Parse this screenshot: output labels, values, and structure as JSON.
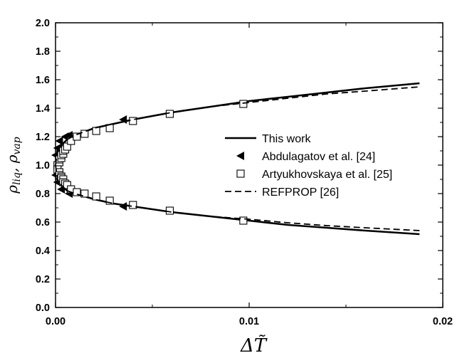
{
  "chart_data": {
    "type": "scatter",
    "xlabel": "ΔT̃",
    "ylabel_main": "ρ",
    "ylabel_sub1": "liq",
    "ylabel_sep": ", ",
    "ylabel_sub2": "vap",
    "xlim": [
      0.0,
      0.02
    ],
    "ylim": [
      0.0,
      2.0
    ],
    "xticks": [
      0.0,
      0.01,
      0.02
    ],
    "xtick_labels": [
      "0.00",
      "0.01",
      "0.02"
    ],
    "yticks": [
      0.0,
      0.2,
      0.4,
      0.6,
      0.8,
      1.0,
      1.2,
      1.4,
      1.6,
      1.8,
      2.0
    ],
    "ytick_labels": [
      "0.0",
      "0.2",
      "0.4",
      "0.6",
      "0.8",
      "1.0",
      "1.2",
      "1.4",
      "1.6",
      "1.8",
      "2.0"
    ],
    "grid": false,
    "legend_position": "center-right",
    "series": [
      {
        "name": "This work",
        "style": "solid-line",
        "color": "#000000",
        "liquid": {
          "x": [
            0,
            0.0001,
            0.0003,
            0.0006,
            0.001,
            0.002,
            0.003,
            0.004,
            0.006,
            0.008,
            0.01,
            0.012,
            0.014,
            0.016,
            0.0188
          ],
          "y": [
            1.0,
            1.1,
            1.14,
            1.18,
            1.21,
            1.26,
            1.29,
            1.32,
            1.37,
            1.41,
            1.45,
            1.48,
            1.51,
            1.54,
            1.575
          ]
        },
        "vapor": {
          "x": [
            0,
            0.0001,
            0.0003,
            0.0006,
            0.001,
            0.002,
            0.003,
            0.004,
            0.006,
            0.008,
            0.01,
            0.012,
            0.014,
            0.016,
            0.0188
          ],
          "y": [
            1.0,
            0.9,
            0.86,
            0.82,
            0.8,
            0.76,
            0.73,
            0.71,
            0.67,
            0.64,
            0.61,
            0.58,
            0.56,
            0.54,
            0.515
          ]
        }
      },
      {
        "name": "Abdulagatov et al. [24]",
        "style": "left-triangle",
        "color": "#000000",
        "x": [
          0.0,
          0.0001,
          0.0002,
          0.0005,
          0.0007,
          0.0035,
          0.0,
          0.0001,
          0.0003,
          0.0007,
          0.0035
        ],
        "y": [
          1.07,
          1.12,
          1.17,
          1.2,
          1.21,
          1.32,
          0.93,
          0.88,
          0.83,
          0.8,
          0.71
        ]
      },
      {
        "name": "Artyukhovskaya et al. [25]",
        "style": "open-square",
        "color": "#000000",
        "x": [
          0.0001,
          0.0002,
          0.0002,
          0.0003,
          0.0003,
          0.0004,
          0.0004,
          0.0005,
          0.0006,
          0.0008,
          0.0011,
          0.0015,
          0.0021,
          0.0028,
          0.004,
          0.0059,
          0.0097,
          0.0001,
          0.0002,
          0.0002,
          0.0003,
          0.0003,
          0.0004,
          0.0004,
          0.0005,
          0.0006,
          0.0008,
          0.0011,
          0.0015,
          0.0021,
          0.0028,
          0.004,
          0.0059,
          0.0097
        ],
        "y": [
          1.0,
          1.02,
          1.04,
          1.05,
          1.07,
          1.08,
          1.1,
          1.11,
          1.13,
          1.17,
          1.2,
          1.22,
          1.24,
          1.26,
          1.31,
          1.36,
          1.43,
          0.97,
          0.95,
          0.93,
          0.92,
          0.91,
          0.9,
          0.88,
          0.87,
          0.86,
          0.83,
          0.81,
          0.8,
          0.78,
          0.75,
          0.72,
          0.68,
          0.61
        ]
      },
      {
        "name": "REFPROP [26]",
        "style": "dashed-line",
        "color": "#000000",
        "liquid": {
          "x": [
            0,
            0.0001,
            0.0003,
            0.0006,
            0.001,
            0.002,
            0.003,
            0.004,
            0.006,
            0.008,
            0.01,
            0.012,
            0.014,
            0.016,
            0.0188
          ],
          "y": [
            1.0,
            1.1,
            1.14,
            1.18,
            1.21,
            1.26,
            1.29,
            1.32,
            1.37,
            1.41,
            1.44,
            1.47,
            1.5,
            1.52,
            1.55
          ]
        },
        "vapor": {
          "x": [
            0,
            0.0001,
            0.0003,
            0.0006,
            0.001,
            0.002,
            0.003,
            0.004,
            0.006,
            0.008,
            0.01,
            0.012,
            0.014,
            0.016,
            0.0188
          ],
          "y": [
            1.0,
            0.9,
            0.86,
            0.82,
            0.8,
            0.76,
            0.73,
            0.71,
            0.67,
            0.64,
            0.62,
            0.595,
            0.575,
            0.56,
            0.54
          ]
        }
      }
    ]
  }
}
